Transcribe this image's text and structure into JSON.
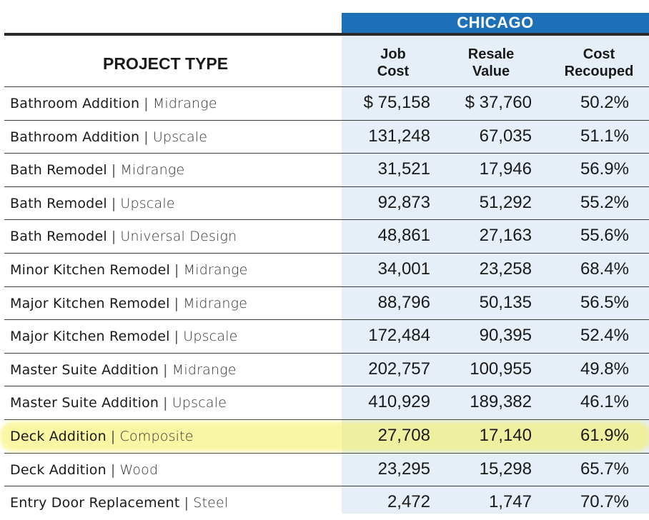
{
  "city": "CHICAGO",
  "header": {
    "project_type": "PROJECT TYPE",
    "job_cost": [
      "Job",
      "Cost"
    ],
    "resale_value": [
      "Resale",
      "Value"
    ],
    "cost_recouped": [
      "Cost",
      "Recouped"
    ]
  },
  "highlight_color": "#f5f05a",
  "accent_color": "#1d70b8",
  "rows": [
    {
      "name": "Bathroom Addition",
      "variant": "Midrange",
      "job_cost": "$ 75,158",
      "resale_value": "$ 37,760",
      "cost_recouped": "50.2%"
    },
    {
      "name": "Bathroom Addition",
      "variant": "Upscale",
      "job_cost": "131,248",
      "resale_value": "67,035",
      "cost_recouped": "51.1%"
    },
    {
      "name": "Bath Remodel",
      "variant": "Midrange",
      "job_cost": "31,521",
      "resale_value": "17,946",
      "cost_recouped": "56.9%"
    },
    {
      "name": "Bath Remodel",
      "variant": "Upscale",
      "job_cost": "92,873",
      "resale_value": "51,292",
      "cost_recouped": "55.2%"
    },
    {
      "name": "Bath Remodel",
      "variant": "Universal Design",
      "job_cost": "48,861",
      "resale_value": "27,163",
      "cost_recouped": "55.6%"
    },
    {
      "name": "Minor Kitchen Remodel",
      "variant": "Midrange",
      "job_cost": "34,001",
      "resale_value": "23,258",
      "cost_recouped": "68.4%"
    },
    {
      "name": "Major Kitchen Remodel",
      "variant": "Midrange",
      "job_cost": "88,796",
      "resale_value": "50,135",
      "cost_recouped": "56.5%"
    },
    {
      "name": "Major Kitchen Remodel",
      "variant": "Upscale",
      "job_cost": "172,484",
      "resale_value": "90,395",
      "cost_recouped": "52.4%"
    },
    {
      "name": "Master Suite Addition",
      "variant": "Midrange",
      "job_cost": "202,757",
      "resale_value": "100,955",
      "cost_recouped": "49.8%"
    },
    {
      "name": "Master Suite Addition",
      "variant": "Upscale",
      "job_cost": "410,929",
      "resale_value": "189,382",
      "cost_recouped": "46.1%"
    },
    {
      "name": "Deck Addition",
      "variant": "Composite",
      "job_cost": "27,708",
      "resale_value": "17,140",
      "cost_recouped": "61.9%",
      "highlighted": true
    },
    {
      "name": "Deck Addition",
      "variant": "Wood",
      "job_cost": "23,295",
      "resale_value": "15,298",
      "cost_recouped": "65.7%"
    },
    {
      "name": "Entry Door Replacement",
      "variant": "Steel",
      "job_cost": "2,472",
      "resale_value": "1,747",
      "cost_recouped": "70.7%"
    }
  ]
}
